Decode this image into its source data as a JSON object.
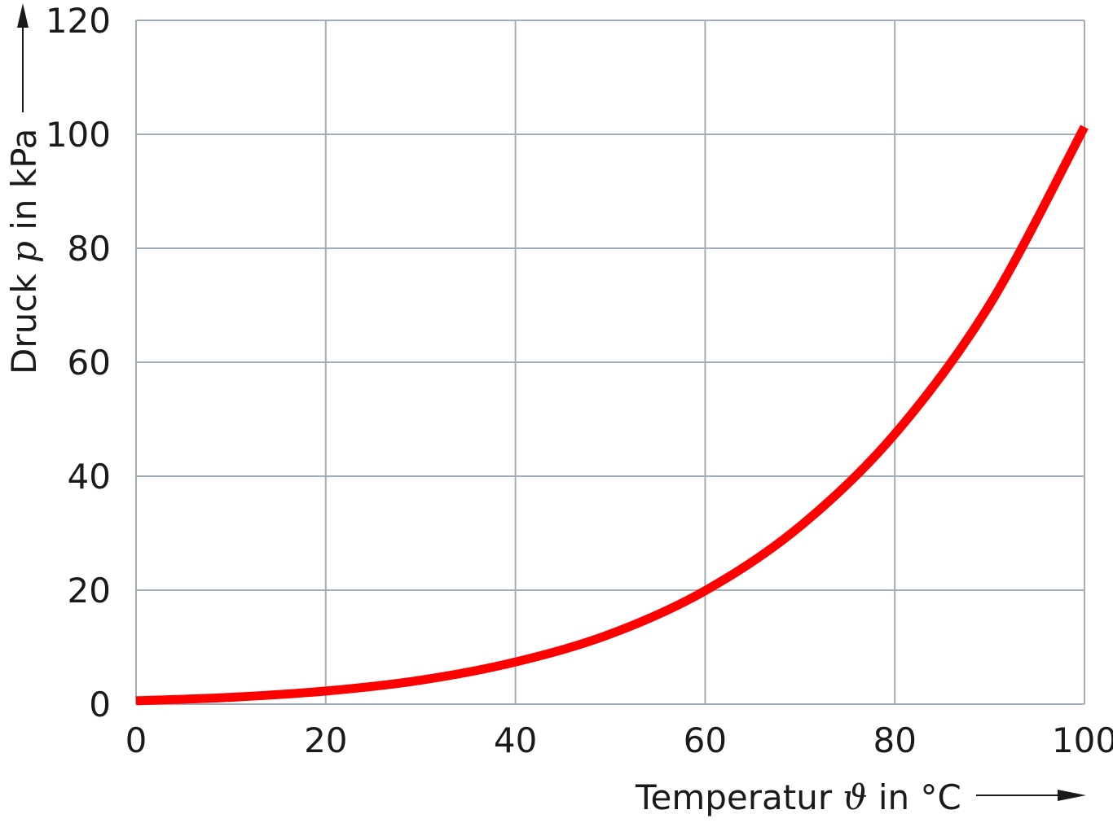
{
  "chart_data": {
    "type": "line",
    "xlabel": {
      "prefix": "Temperatur ",
      "symbol": "ϑ",
      "suffix": " in °C"
    },
    "ylabel": {
      "prefix": "Druck ",
      "symbol": "p",
      "suffix": " in kPa"
    },
    "xlim": [
      0,
      100
    ],
    "ylim": [
      0,
      120
    ],
    "x_ticks": [
      "0",
      "20",
      "40",
      "60",
      "80",
      "100"
    ],
    "y_ticks": [
      "0",
      "20",
      "40",
      "60",
      "80",
      "100",
      "120"
    ],
    "grid": true,
    "series": [
      {
        "color": "#ff0000",
        "x": [
          0,
          10,
          20,
          30,
          40,
          50,
          60,
          70,
          80,
          90,
          100
        ],
        "y": [
          0.6,
          1.2,
          2.3,
          4.2,
          7.4,
          12.3,
          19.9,
          31.2,
          47.4,
          70.1,
          101.3
        ]
      }
    ]
  }
}
